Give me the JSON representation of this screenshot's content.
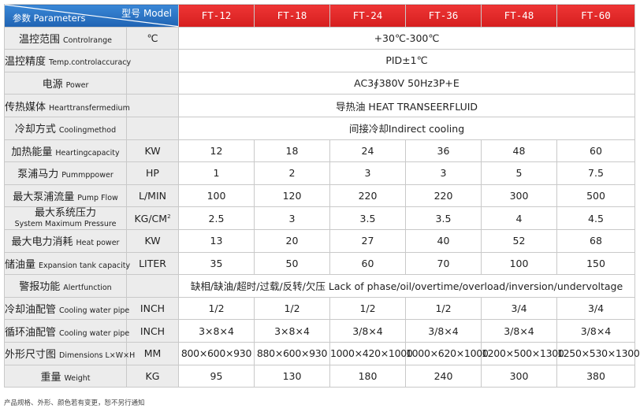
{
  "header": {
    "model_label": "型号 Model",
    "params_label": "参数 Parameters",
    "models": [
      "FT-12",
      "FT-18",
      "FT-24",
      "FT-36",
      "FT-48",
      "FT-60"
    ]
  },
  "rows": [
    {
      "cn": "温控范围",
      "en": "Controlrange",
      "unit": "℃",
      "span": "+30℃-300℃"
    },
    {
      "cn": "温控精度",
      "en": "Temp.controlaccuracy",
      "unit": "",
      "span": "PID±1℃"
    },
    {
      "cn": "电源",
      "en": "Power",
      "unit": "",
      "span": "AC3∮380V  50Hz3P+E"
    },
    {
      "cn": "传热媒体",
      "en": "Hearttransfermedium",
      "unit": "",
      "span": "导热油 HEAT TRANSEERFLUID"
    },
    {
      "cn": "冷却方式",
      "en": "Coolingmethod",
      "unit": "",
      "span": "间接冷却Indirect cooling"
    },
    {
      "cn": "加热能量",
      "en": "Heartingcapacity",
      "unit": "KW",
      "values": [
        "12",
        "18",
        "24",
        "36",
        "48",
        "60"
      ]
    },
    {
      "cn": "泵浦马力",
      "en": "Pummppower",
      "unit": "HP",
      "values": [
        "1",
        "2",
        "3",
        "3",
        "5",
        "7.5"
      ]
    },
    {
      "cn": "最大泵浦流量",
      "en": "Pump Flow",
      "unit": "L/MIN",
      "values": [
        "100",
        "120",
        "220",
        "220",
        "300",
        "500"
      ]
    },
    {
      "cn": "最大系统压力",
      "en": "System Maximum Pressure",
      "unit": "KG/CM",
      "unit_sup": "2",
      "values": [
        "2.5",
        "3",
        "3.5",
        "3.5",
        "4",
        "4.5"
      ]
    },
    {
      "cn": "最大电力消耗",
      "en": "Heat power",
      "unit": "KW",
      "values": [
        "13",
        "20",
        "27",
        "40",
        "52",
        "68"
      ]
    },
    {
      "cn": "储油量",
      "en": "Expansion tank capacity",
      "unit": "LITER",
      "values": [
        "35",
        "50",
        "60",
        "70",
        "100",
        "150"
      ]
    },
    {
      "cn": "警报功能",
      "en": "Alertfunction",
      "unit": "",
      "span": "缺相/缺油/超时/过载/反转/欠压   Lack of phase/oil/overtime/overload/inversion/undervoltage"
    },
    {
      "cn": "冷却油配管",
      "en": "Cooling water pipe",
      "unit": "INCH",
      "values": [
        "1/2",
        "1/2",
        "1/2",
        "1/2",
        "3/4",
        "3/4"
      ]
    },
    {
      "cn": "循环油配管",
      "en": "Cooling water pipe",
      "unit": "INCH",
      "values": [
        "3×8×4",
        "3×8×4",
        "3/8×4",
        "3/8×4",
        "3/8×4",
        "3/8×4"
      ]
    },
    {
      "cn": "外形尺寸图",
      "en": "Dimensions L×W×H",
      "unit": "MM",
      "values": [
        "800×600×930",
        "880×600×930",
        "1000×420×1000",
        "1000×620×1000",
        "1200×500×1300",
        "1250×530×1300"
      ]
    },
    {
      "cn": "重量",
      "en": "Weight",
      "unit": "KG",
      "values": [
        "95",
        "130",
        "180",
        "240",
        "300",
        "380"
      ]
    }
  ],
  "footnote": "产品规格、外形、颜色若有变更，恕不另行通知"
}
